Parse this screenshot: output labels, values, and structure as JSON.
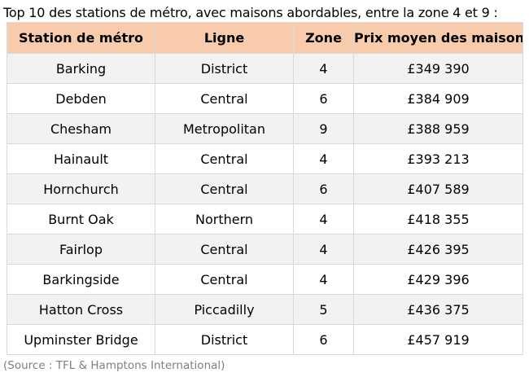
{
  "title": "Top 10 des stations de métro, avec maisons abordables, entre la zone 4 et 9 :",
  "table": {
    "headers": [
      "Station de métro",
      "Ligne",
      "Zone",
      "Prix moyen des maisons"
    ],
    "rows": [
      [
        "Barking",
        "District",
        "4",
        "£349 390"
      ],
      [
        "Debden",
        "Central",
        "6",
        "£384 909"
      ],
      [
        "Chesham",
        "Metropolitan",
        "9",
        "£388 959"
      ],
      [
        "Hainault",
        "Central",
        "4",
        "£393 213"
      ],
      [
        "Hornchurch",
        "Central",
        "6",
        "£407 589"
      ],
      [
        "Burnt Oak",
        "Northern",
        "4",
        "£418 355"
      ],
      [
        "Fairlop",
        "Central",
        "4",
        "£426 395"
      ],
      [
        "Barkingside",
        "Central",
        "4",
        "£429 396"
      ],
      [
        "Hatton Cross",
        "Piccadilly",
        "5",
        "£436 375"
      ],
      [
        "Upminster Bridge",
        "District",
        "6",
        "£457 919"
      ]
    ]
  },
  "source": "(Source : TFL & Hamptons International)",
  "colors": {
    "header_bg": "#f8cbad",
    "row_alt_bg": "#f2f2f2",
    "grid": "#d9d9d9",
    "source_text": "#7f7f7f"
  }
}
